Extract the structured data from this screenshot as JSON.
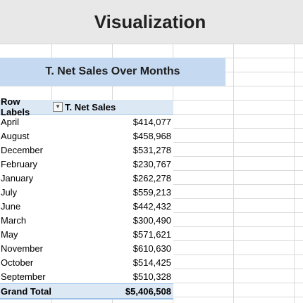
{
  "title": "Visualization",
  "subtitle": "T. Net Sales Over Months",
  "pivot": {
    "header_row_labels": "Row Labels",
    "header_value": "T. Net Sales",
    "filter_icon": "dropdown-arrow-icon",
    "rows": [
      {
        "label": "April",
        "value": "$414,077"
      },
      {
        "label": "August",
        "value": "$458,968"
      },
      {
        "label": "December",
        "value": "$531,278"
      },
      {
        "label": "February",
        "value": "$230,767"
      },
      {
        "label": "January",
        "value": "$262,278"
      },
      {
        "label": "July",
        "value": "$559,213"
      },
      {
        "label": "June",
        "value": "$442,432"
      },
      {
        "label": "March",
        "value": "$300,490"
      },
      {
        "label": "May",
        "value": "$571,621"
      },
      {
        "label": "November",
        "value": "$610,630"
      },
      {
        "label": "October",
        "value": "$514,425"
      },
      {
        "label": "September",
        "value": "$510,328"
      }
    ],
    "grand_total_label": "Grand Total",
    "grand_total_value": "$5,406,508"
  },
  "colors": {
    "title_band": "#e8e8e8",
    "subtitle_band": "#c5d9f1",
    "pivot_header": "#dde8f5",
    "pivot_border": "#9bc2e6",
    "gridlines": "#d9d9d9"
  }
}
